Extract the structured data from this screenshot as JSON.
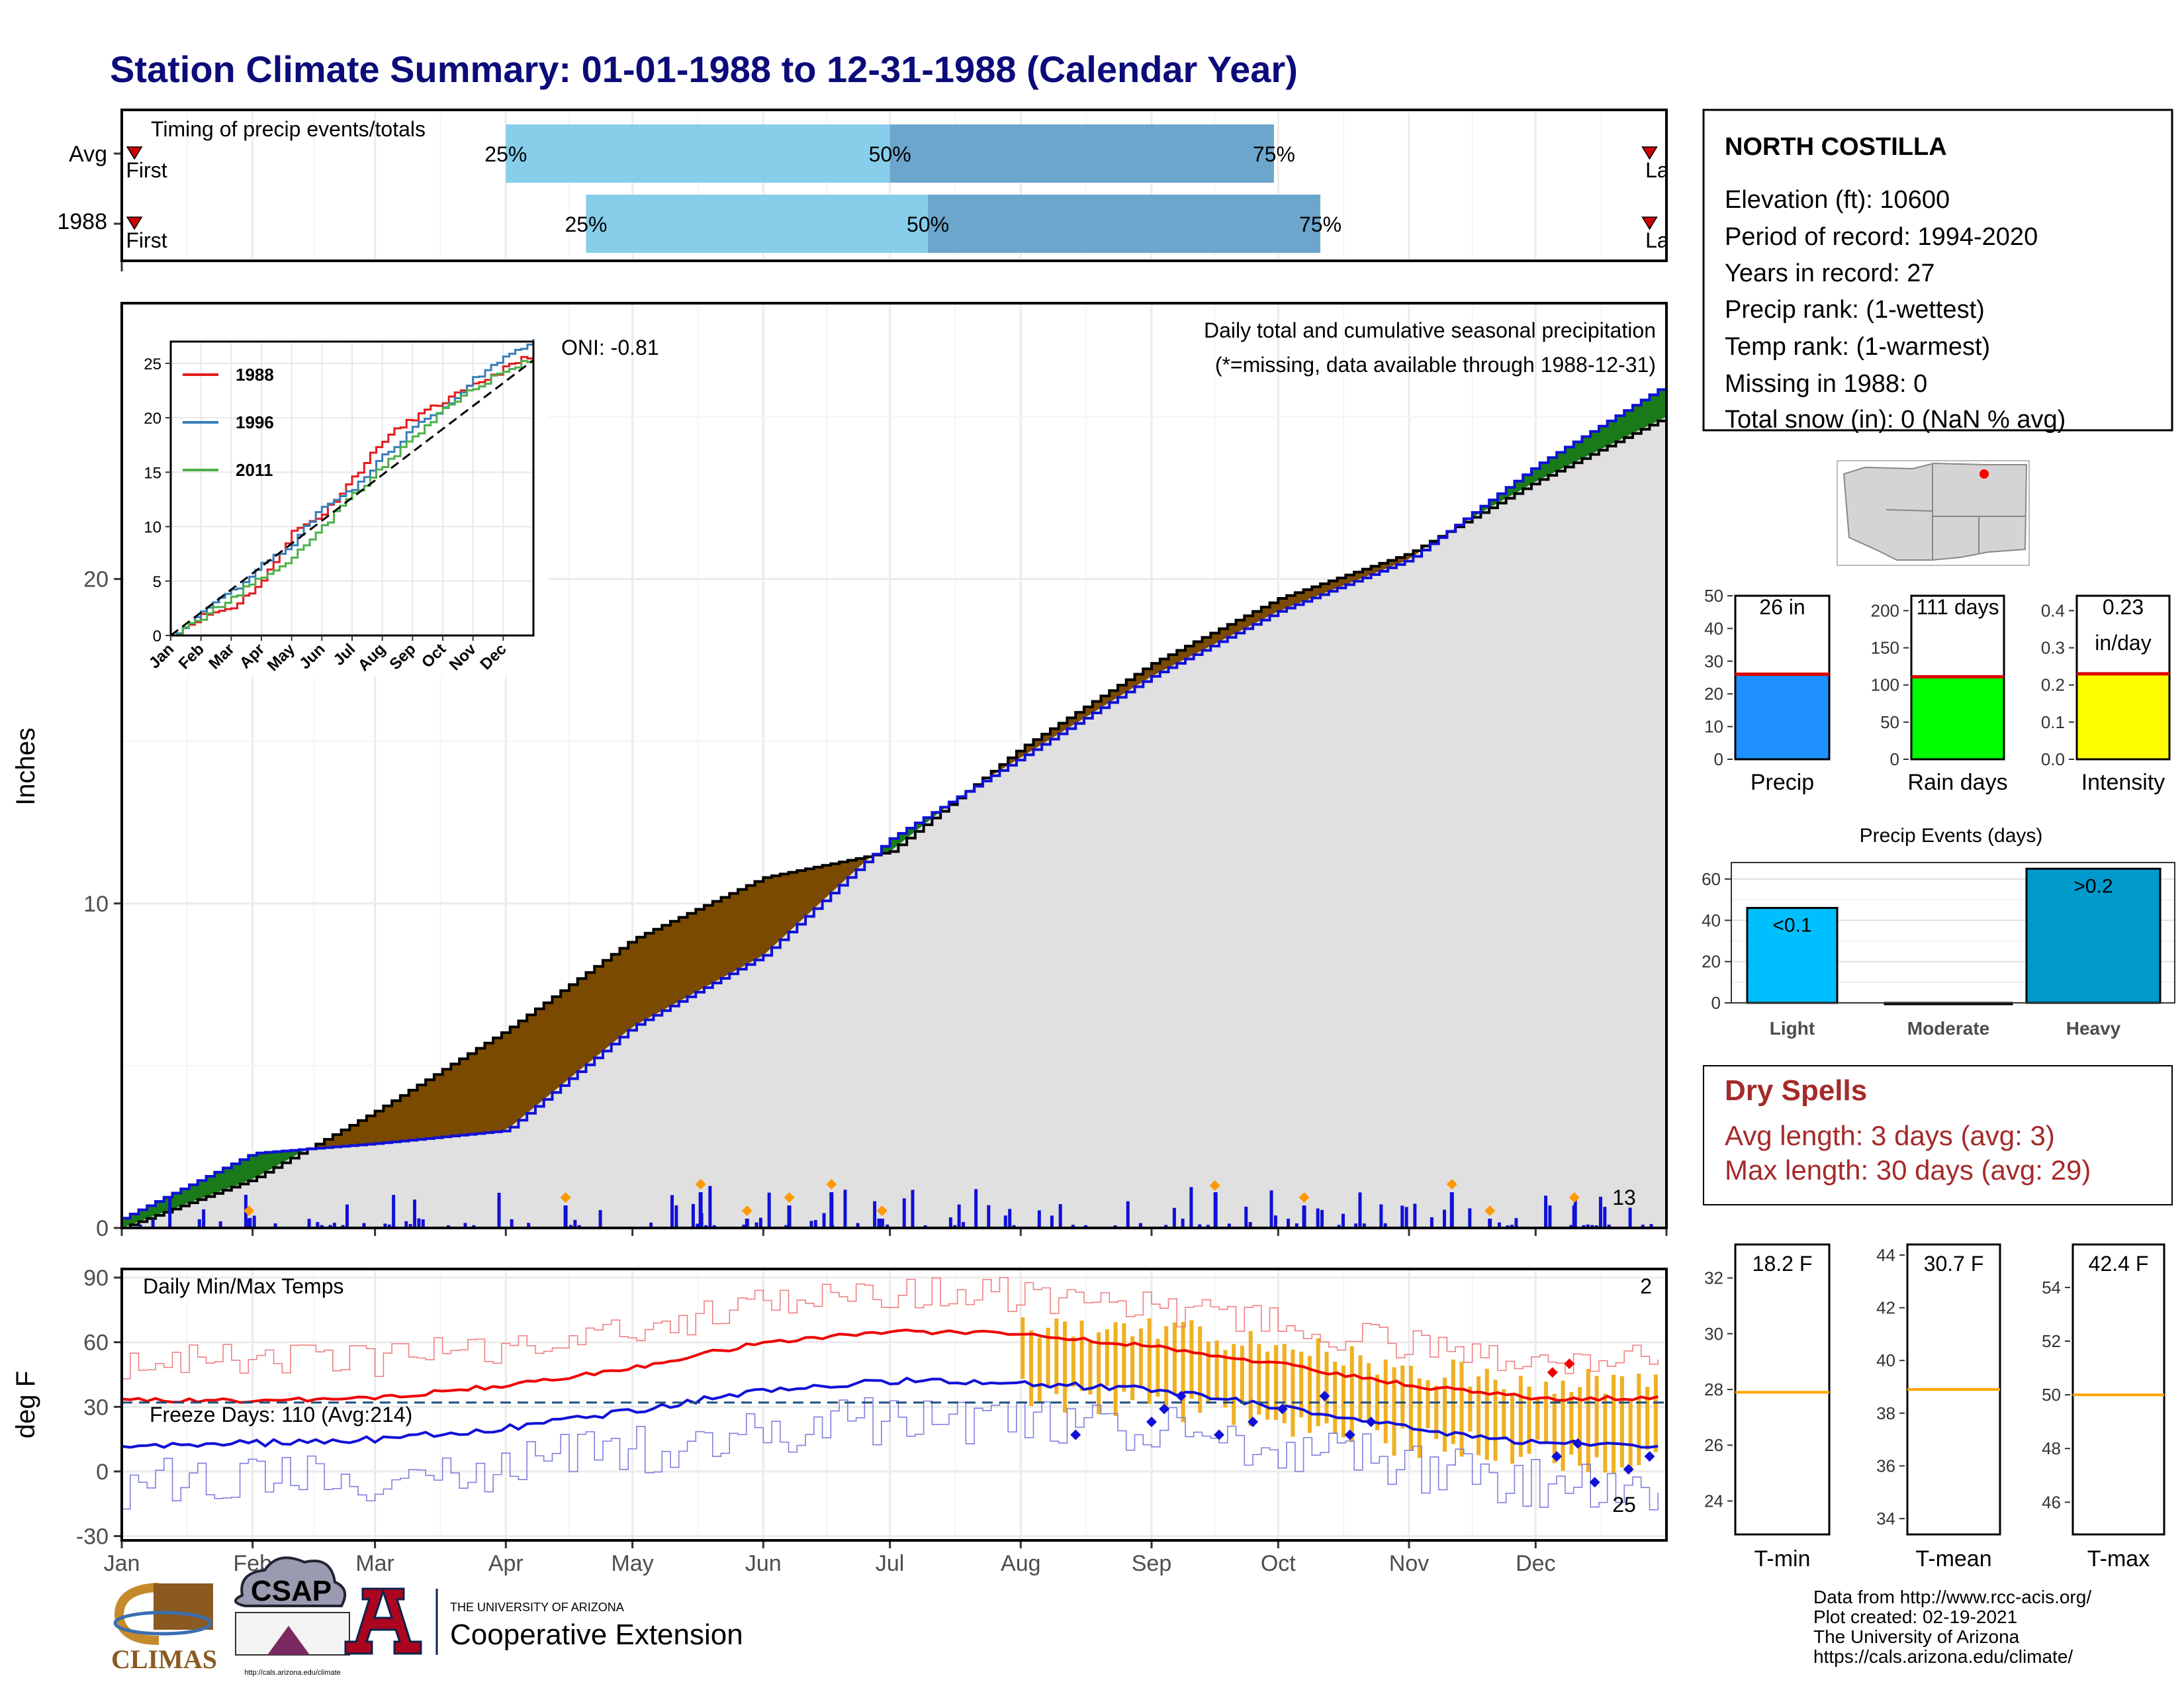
{
  "page": {
    "title": "Station Climate Summary: 01-01-1988 to 12-31-1988 (Calendar Year)"
  },
  "station": {
    "name": "NORTH COSTILLA",
    "lines": [
      "Elevation (ft): 10600",
      "Period of record: 1994-2020",
      "Years in record: 27",
      "Precip rank:  (1-wettest)",
      "Temp rank:  (1-warmest)",
      "Missing in 1988: 0",
      "Total snow (in): 0 (NaN % avg)"
    ]
  },
  "months": [
    "Jan",
    "Feb",
    "Mar",
    "Apr",
    "May",
    "Jun",
    "Jul",
    "Aug",
    "Sep",
    "Oct",
    "Nov",
    "Dec"
  ],
  "timing": {
    "title": "Timing of precip events/totals",
    "rows": [
      {
        "label": "Avg",
        "q25": "2021-04-01",
        "q50": "2021-07-01",
        "q75": "2021-09-30",
        "first": "First",
        "last": "Last"
      },
      {
        "label": "1988",
        "q25": "2021-04-20",
        "q50": "2021-07-10",
        "q75": "2021-10-11",
        "first": "First",
        "last": "Last"
      }
    ],
    "q_labels": [
      "25%",
      "50%",
      "75%"
    ]
  },
  "precip": {
    "ylabel": "Inches",
    "y_ticks": [
      0,
      10,
      20
    ],
    "ylim": [
      0,
      28.5
    ],
    "oni": "ONI: -0.81",
    "subtitle": "Daily total and cumulative seasonal precipitation",
    "missing_note": "(*=missing, data available through 1988-12-31)",
    "extreme_count": "13",
    "colors": {
      "above": "#1a7a1a",
      "below": "#7a4a00",
      "fill": "#e0e0e0",
      "obs": "#1010d8",
      "avg": "#000000",
      "marker": "#ff9900"
    }
  },
  "inset": {
    "series": [
      {
        "name": "1988",
        "color": "#e41a1c"
      },
      {
        "name": "1996",
        "color": "#377eb8"
      },
      {
        "name": "2011",
        "color": "#4daf4a"
      }
    ],
    "y_ticks": [
      0,
      5,
      10,
      15,
      20,
      25
    ],
    "months": [
      "Jan",
      "Feb",
      "Mar",
      "Apr",
      "May",
      "Jun",
      "Jul",
      "Aug",
      "Sep",
      "Oct",
      "Nov",
      "Dec"
    ]
  },
  "temps": {
    "title": "Daily Min/Max Temps",
    "ylabel": "deg F",
    "y_ticks": [
      -30,
      0,
      30,
      60,
      90
    ],
    "freeze_label": "Freeze Days: 110 (Avg:214)",
    "hot_count": "2",
    "cold_count": "25"
  },
  "summary_bars": [
    {
      "label": "Precip",
      "value_text": "26 in",
      "value": 26,
      "avg": 26,
      "ylim": [
        0,
        50
      ],
      "ticks": [
        0,
        10,
        20,
        30,
        40,
        50
      ],
      "color": "#1e90ff"
    },
    {
      "label": "Rain days",
      "value_text": "111 days",
      "value": 111,
      "avg": 111,
      "ylim": [
        0,
        220
      ],
      "ticks": [
        0,
        50,
        100,
        150,
        200
      ],
      "color": "#00ff00"
    },
    {
      "label": "Intensity",
      "value_text": "0.23",
      "value_text2": "in/day",
      "value": 0.23,
      "avg": 0.23,
      "ylim": [
        0,
        0.44
      ],
      "ticks": [
        "0.0",
        "0.1",
        "0.2",
        "0.3",
        "0.4"
      ],
      "color": "#ffff00"
    }
  ],
  "events": {
    "title": "Precip Events (days)",
    "categories": [
      "Light",
      "Moderate",
      "Heavy"
    ],
    "values": [
      46,
      0,
      65
    ],
    "labels": [
      "<0.1",
      "",
      ">0.2"
    ],
    "ticks": [
      0,
      20,
      40,
      60
    ],
    "colors": [
      "#00bfff",
      "#0a9bd6",
      "#0099cc"
    ]
  },
  "dry_spells": {
    "title": "Dry Spells",
    "avg_line": "Avg length: 3 days (avg: 3)",
    "max_line": "Max length: 30 days (avg: 29)"
  },
  "temp_bars": [
    {
      "label": "T-min",
      "value_text": "18.2 F",
      "ticks": [
        24,
        26,
        28,
        30,
        32
      ],
      "ylim": [
        22.8,
        33.2
      ],
      "avg": 27.9
    },
    {
      "label": "T-mean",
      "value_text": "30.7 F",
      "ticks": [
        34,
        36,
        38,
        40,
        42,
        44
      ],
      "ylim": [
        33.4,
        44.4
      ],
      "avg": 38.9
    },
    {
      "label": "T-max",
      "value_text": "42.4 F",
      "ticks": [
        46,
        48,
        50,
        52,
        54
      ],
      "ylim": [
        44.8,
        55.6
      ],
      "avg": 50
    }
  ],
  "credits": [
    "Data from http://www.rcc-acis.org/",
    "Plot created: 02-19-2021",
    "The University of Arizona",
    "https://cals.arizona.edu/climate/"
  ],
  "logos": {
    "climas": "CLIMAS",
    "csap": "CSAP",
    "csap_url": "http://cals.arizona.edu/climate",
    "ua_line1": "THE UNIVERSITY OF ARIZONA",
    "ua_line2": "Cooperative Extension"
  },
  "chart_data": [
    {
      "type": "area",
      "title": "Daily total and cumulative seasonal precipitation",
      "ylabel": "Inches",
      "ylim": [
        0,
        28.5
      ],
      "x": [
        "Jan",
        "Feb",
        "Mar",
        "Apr",
        "May",
        "Jun",
        "Jul",
        "Aug",
        "Sep",
        "Oct",
        "Nov",
        "Dec",
        "Dec 31"
      ],
      "series": [
        {
          "name": "observed cumulative",
          "values": [
            0.3,
            2.3,
            2.6,
            3.0,
            6.2,
            8.4,
            12.0,
            14.5,
            17.0,
            19.0,
            20.6,
            23.5,
            26.0
          ]
        },
        {
          "name": "average cumulative",
          "values": [
            0.0,
            1.5,
            3.6,
            6.1,
            8.9,
            10.8,
            11.6,
            14.8,
            17.4,
            19.4,
            20.8,
            23.0,
            25.0
          ]
        }
      ]
    },
    {
      "type": "line",
      "title": "Daily Min/Max Temps",
      "ylabel": "deg F",
      "ylim": [
        -32,
        94
      ],
      "x": [
        "Jan",
        "Feb",
        "Mar",
        "Apr",
        "May",
        "Jun",
        "Jul",
        "Aug",
        "Sep",
        "Oct",
        "Nov",
        "Dec"
      ],
      "series": [
        {
          "name": "avg max",
          "values": [
            33,
            33,
            34,
            40,
            48,
            60,
            65,
            64,
            58,
            50,
            40,
            34
          ]
        },
        {
          "name": "avg min",
          "values": [
            12,
            13,
            15,
            20,
            28,
            38,
            42,
            41,
            38,
            30,
            20,
            13
          ]
        }
      ]
    },
    {
      "type": "bar",
      "title": "Precip Events (days)",
      "categories": [
        "Light",
        "Moderate",
        "Heavy"
      ],
      "values": [
        46,
        0,
        65
      ]
    },
    {
      "type": "bar",
      "categories": [
        "Precip",
        "Rain days",
        "Intensity"
      ],
      "values": [
        26,
        111,
        0.23
      ]
    },
    {
      "type": "bar",
      "categories": [
        "T-min",
        "T-mean",
        "T-max"
      ],
      "values": [
        18.2,
        30.7,
        42.4
      ]
    }
  ]
}
